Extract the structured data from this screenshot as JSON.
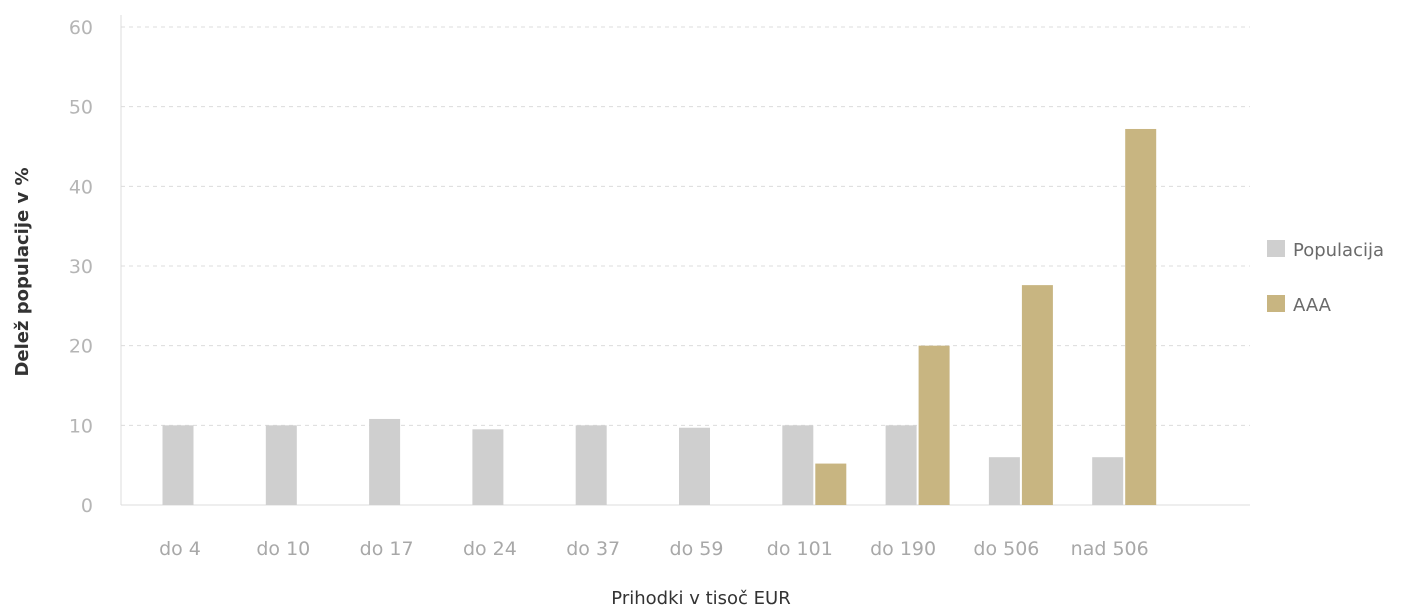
{
  "chart_data": {
    "type": "bar",
    "title": "",
    "xlabel": "Prihodki v tisoč EUR",
    "ylabel": "Delež populacije v %",
    "categories": [
      "do 4",
      "do 10",
      "do 17",
      "do 24",
      "do 37",
      "do 59",
      "do 101",
      "do 190",
      "do 506",
      "nad 506"
    ],
    "series": [
      {
        "name": "Populacija",
        "color": "#cfcfcf",
        "values": [
          10,
          10,
          10.8,
          9.5,
          10,
          9.7,
          10,
          10,
          6,
          6
        ]
      },
      {
        "name": "AAA",
        "color": "#c8b581",
        "values": [
          null,
          null,
          null,
          null,
          null,
          null,
          5.2,
          20,
          27.6,
          47.2
        ]
      }
    ],
    "yticks": [
      0,
      10,
      20,
      30,
      40,
      50,
      60
    ],
    "ylim": [
      0,
      60
    ],
    "grid": true,
    "legend_position": "right"
  }
}
